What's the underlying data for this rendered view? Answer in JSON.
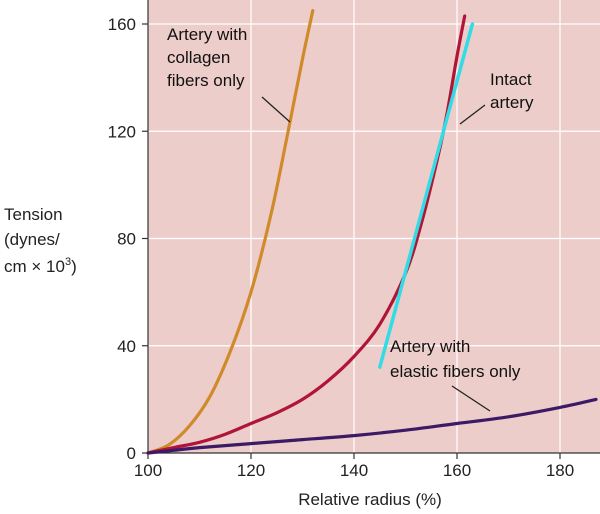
{
  "chart_data": {
    "type": "line",
    "title": "",
    "xlabel": "Relative radius (%)",
    "ylabel_lines": [
      "Tension",
      "(dynes/",
      "cm × 10"
    ],
    "ylabel_superscript": "3",
    "ylabel_close": ")",
    "xlim": [
      100,
      187
    ],
    "ylim": [
      0,
      164
    ],
    "xticks": [
      100,
      120,
      140,
      160,
      180
    ],
    "yticks": [
      0,
      40,
      80,
      120,
      160
    ],
    "xtick_labels": [
      "100",
      "120",
      "140",
      "160",
      "180"
    ],
    "ytick_labels": [
      "0",
      "40",
      "80",
      "120",
      "160"
    ],
    "grid": true,
    "colors": {
      "background": "#edcdc9",
      "grid": "#ffffff",
      "axis": "#333333",
      "collagen": "#d08a2c",
      "intact": "#b01437",
      "elastic": "#3c1a66",
      "tangent": "#31dce6",
      "leader": "#222222"
    },
    "series": [
      {
        "name": "collagen",
        "annotation_lines": [
          "Artery with",
          "collagen",
          "fibers only"
        ],
        "x": [
          100,
          104,
          108,
          112,
          116,
          120,
          124,
          127,
          130,
          132
        ],
        "y": [
          0,
          3,
          10,
          21,
          38,
          60,
          90,
          118,
          147,
          165
        ]
      },
      {
        "name": "intact",
        "annotation_lines": [
          "Intact",
          "artery"
        ],
        "x": [
          100,
          105,
          110,
          115,
          120,
          125,
          130,
          135,
          140,
          145,
          150,
          153,
          156,
          158,
          160,
          161.5
        ],
        "y": [
          0,
          2,
          4,
          7,
          11,
          15,
          20,
          27,
          36,
          48,
          67,
          85,
          108,
          126,
          148,
          163
        ]
      },
      {
        "name": "elastic",
        "annotation_lines": [
          "Artery with",
          "elastic fibers only"
        ],
        "x": [
          100,
          105,
          110,
          120,
          130,
          140,
          150,
          160,
          170,
          180,
          187
        ],
        "y": [
          0,
          1,
          2,
          3.5,
          5,
          6.5,
          8.5,
          11,
          13.5,
          17,
          20
        ]
      },
      {
        "name": "tangent",
        "x": [
          145,
          163
        ],
        "y": [
          32,
          160
        ]
      }
    ]
  }
}
